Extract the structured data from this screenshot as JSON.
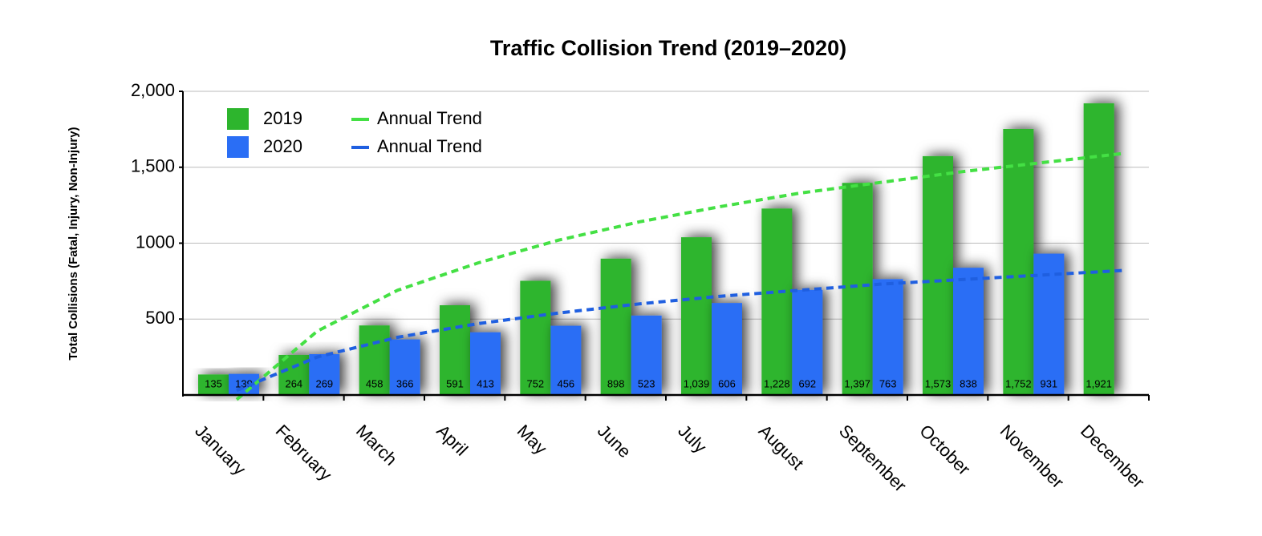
{
  "chart_data": {
    "type": "bar",
    "title": "Traffic Collision Trend (2019–2020)",
    "y_label": "Total Collisions (Fatal, Injury, Non-Injury)",
    "categories": [
      "January",
      "February",
      "March",
      "April",
      "May",
      "June",
      "July",
      "August",
      "September",
      "October",
      "November",
      "December"
    ],
    "series": [
      {
        "name": "2019",
        "type": "bar",
        "color": "#2db52d",
        "values": [
          135,
          264,
          458,
          591,
          752,
          898,
          1039,
          1228,
          1397,
          1573,
          1752,
          1921
        ],
        "value_labels": [
          "135",
          "264",
          "458",
          "591",
          "752",
          "898",
          "1,039",
          "1,228",
          "1,397",
          "1,573",
          "1,752",
          "1,921"
        ]
      },
      {
        "name": "2020",
        "type": "bar",
        "color": "#2a6ef5",
        "values": [
          139,
          269,
          366,
          413,
          456,
          523,
          606,
          692,
          763,
          838,
          931,
          null
        ],
        "value_labels": [
          "139",
          "269",
          "366",
          "413",
          "456",
          "523",
          "606",
          "692",
          "763",
          "838",
          "931",
          null
        ]
      },
      {
        "name": "Annual Trend",
        "type": "line",
        "dashed": true,
        "color": "#44e044",
        "values": [
          -30,
          420,
          690,
          870,
          1020,
          1140,
          1240,
          1330,
          1400,
          1470,
          1530,
          1590
        ]
      },
      {
        "name": "Annual Trend",
        "type": "line",
        "dashed": true,
        "color": "#1f5fe0",
        "values": [
          30,
          250,
          380,
          470,
          540,
          600,
          650,
          690,
          730,
          760,
          790,
          820
        ]
      }
    ],
    "ylim": [
      0,
      2000
    ],
    "yticks": [
      500,
      1000,
      {
        "value": 1500,
        "label": "1,500"
      },
      {
        "value": 2000,
        "label": "2,000"
      }
    ],
    "grid": true,
    "legend": "top-left"
  }
}
